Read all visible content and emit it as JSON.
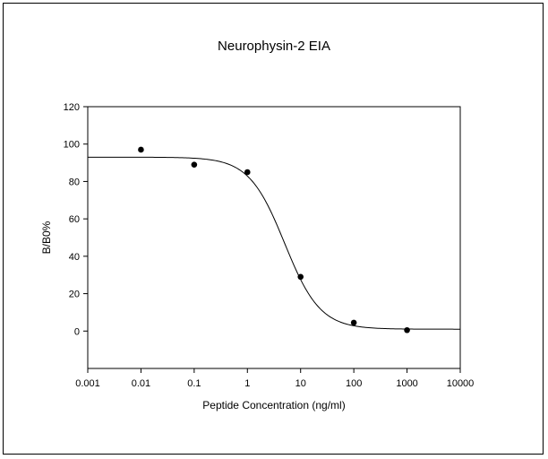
{
  "chart_data": {
    "type": "scatter",
    "title": "Neurophysin-2  EIA",
    "xlabel": "Peptide Concentration (ng/ml)",
    "ylabel": "B/B0%",
    "x_scale": "log",
    "xlim": [
      0.001,
      10000
    ],
    "ylim": [
      -20,
      120
    ],
    "x_ticks": [
      0.001,
      0.01,
      0.1,
      1,
      10,
      100,
      1000,
      10000
    ],
    "x_tick_labels": [
      "0.001",
      "0.01",
      "0.1",
      "1",
      "10",
      "100",
      "1000",
      "10000"
    ],
    "y_ticks": [
      120,
      100,
      80,
      60,
      40,
      20,
      0
    ],
    "y_tick_labels": [
      "120",
      "100",
      "80",
      "60",
      "40",
      "20",
      "0"
    ],
    "grid": false,
    "legend": "none",
    "points": [
      {
        "x": 0.01,
        "y": 97
      },
      {
        "x": 0.1,
        "y": 89
      },
      {
        "x": 1,
        "y": 85
      },
      {
        "x": 10,
        "y": 29
      },
      {
        "x": 100,
        "y": 4.5
      },
      {
        "x": 1000,
        "y": 0.5
      }
    ],
    "fit_curve": {
      "model": "4PL",
      "top": 93,
      "bottom": 1,
      "ec50": 5,
      "hill_slope": 1.3
    },
    "colors": {
      "marker": "#000000",
      "line": "#000000"
    }
  }
}
